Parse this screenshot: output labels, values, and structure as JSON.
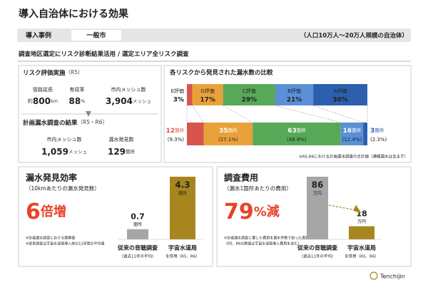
{
  "title": "導入自治体における効果",
  "case": {
    "label": "導入事例",
    "city": "一般市",
    "population": "（人口10万人～20万人規模の自治体）"
  },
  "approach": "調査地区選定にリスク診断結果活用 / 選定エリア全リスク調査",
  "risk_assessment": {
    "title": "リスク評価実施",
    "period": "（R5）",
    "items": [
      {
        "label": "管路延長",
        "prefix": "約",
        "value": "800",
        "unit": "km"
      },
      {
        "label": "有収率",
        "value": "88",
        "unit": "%"
      },
      {
        "label": "市内メッシュ数",
        "value": "3,904",
        "unit": "メッシュ"
      }
    ]
  },
  "survey_result": {
    "title": "計画漏水調査の結果",
    "period": "（R5・R6）",
    "items": [
      {
        "label": "市内メッシュ数",
        "value": "1,059",
        "unit": "メッシュ"
      },
      {
        "label": "漏水発見数",
        "value": "129",
        "unit": "箇所"
      }
    ]
  },
  "comparison": {
    "title": "各リスクから発見された漏水数の比較",
    "segments": [
      {
        "grade": "E評価",
        "share": 3,
        "share_label": "3%",
        "count": 12,
        "unit": "箇所",
        "ratio_label": "(9.3%)",
        "color": "#d9534f"
      },
      {
        "grade": "D評価",
        "share": 17,
        "share_label": "17%",
        "count": 35,
        "unit": "箇所",
        "ratio_label": "(27.1%)",
        "color": "#e9a23b"
      },
      {
        "grade": "C評価",
        "share": 29,
        "share_label": "29%",
        "count": 63,
        "unit": "箇所",
        "ratio_label": "(48.8%)",
        "color": "#57a957"
      },
      {
        "grade": "B評価",
        "share": 21,
        "share_label": "21%",
        "count": 16,
        "unit": "箇所",
        "ratio_label": "(12.4%)",
        "color": "#5b8fd6"
      },
      {
        "grade": "A評価",
        "share": 30,
        "share_label": "30%",
        "count": 3,
        "unit": "箇所",
        "ratio_label": "(2.3%)",
        "color": "#2c5fae"
      }
    ],
    "note": "※R5,R6における計画漏水調査の合計値（通報漏水は含まず）"
  },
  "efficiency": {
    "title": "漏水発見効率",
    "subtitle": "（10kmあたりの漏水発見数）",
    "headline": "6",
    "headline_suffix": "倍増",
    "bars": [
      {
        "value": 0.7,
        "unit": "箇所",
        "label": "従来の音聴調査",
        "sublabel": "（過去11年の平均）",
        "color": "#a6a6a6"
      },
      {
        "value": 4.3,
        "unit": "箇所",
        "label": "宇宙水道局",
        "sublabel": "を併用（R5、R6）",
        "color": "#a8861f"
      }
    ],
    "notes": [
      "※計画漏水調査における実績値",
      "※従来調査は宇宙水道局導入前の11年間の平均値"
    ]
  },
  "cost": {
    "title": "調査費用",
    "subtitle": "（漏水1箇所あたりの費用）",
    "headline": "79",
    "headline_suffix": "%減",
    "bars": [
      {
        "value": 86,
        "unit": "万円",
        "label": "従来の音聴調査",
        "sublabel": "（過去11年の平均）",
        "color": "#a6a6a6"
      },
      {
        "value": 18,
        "unit": "万円",
        "label": "宇宙水道局",
        "sublabel": "を併用（R5、R6）",
        "color": "#a8861f"
      }
    ],
    "notes": [
      "※計画漏水調査に要した費用を漏水件数で割った実績値",
      "（R5、R6の数値は宇宙水道局導入費用を含む）"
    ]
  },
  "logo": "Tenchijin"
}
